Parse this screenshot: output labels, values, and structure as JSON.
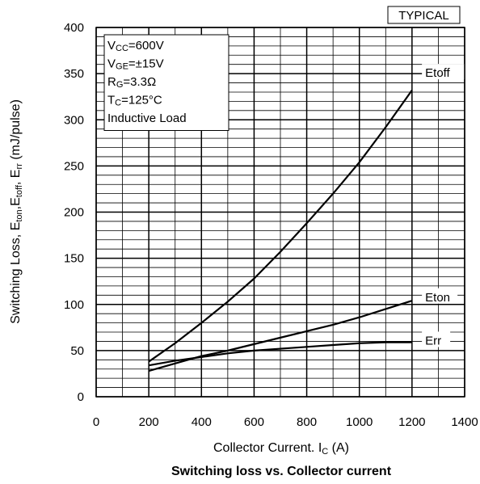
{
  "chart_data": {
    "type": "line",
    "badge": "TYPICAL",
    "caption": "Switching loss vs. Collector current",
    "xlabel": {
      "main": "Collector Current. I",
      "sub": "C",
      "unit": " (A)"
    },
    "ylabel": {
      "p1": "Switching Loss, E",
      "s1": "ton",
      "p2": ",E",
      "s2": "toff",
      "p3": ", E",
      "s3": "rr",
      "p4": " (mJ/pulse)"
    },
    "xlim": [
      0,
      1400
    ],
    "ylim": [
      0,
      400
    ],
    "xticks": [
      "0",
      "200",
      "400",
      "600",
      "800",
      "1000",
      "1200",
      "1400"
    ],
    "yticks": [
      "0",
      "50",
      "100",
      "150",
      "200",
      "250",
      "300",
      "350",
      "400"
    ],
    "grid": true,
    "conditions": [
      {
        "main": "V",
        "sub": "CC",
        "rest": "=600V"
      },
      {
        "main": "V",
        "sub": "GE",
        "rest": "=±15V"
      },
      {
        "main": "R",
        "sub": "G",
        "rest": "=3.3Ω"
      },
      {
        "main": "T",
        "sub": "C",
        "rest": "=125°C"
      },
      {
        "main": "Inductive Load",
        "sub": "",
        "rest": ""
      }
    ],
    "series": [
      {
        "name": "Etoff",
        "x": [
          200,
          300,
          400,
          500,
          600,
          700,
          800,
          900,
          1000,
          1100,
          1200
        ],
        "y": [
          38,
          58,
          80,
          103,
          128,
          157,
          188,
          220,
          254,
          292,
          332
        ]
      },
      {
        "name": "Eton",
        "x": [
          200,
          300,
          400,
          500,
          600,
          700,
          800,
          900,
          1000,
          1100,
          1200
        ],
        "y": [
          28,
          36,
          44,
          50,
          57,
          64,
          71,
          78,
          86,
          95,
          104
        ]
      },
      {
        "name": "Err",
        "x": [
          200,
          300,
          400,
          500,
          600,
          700,
          800,
          900,
          1000,
          1100,
          1200
        ],
        "y": [
          34,
          39,
          43,
          47,
          50,
          52,
          54,
          56,
          58,
          59,
          59
        ]
      }
    ]
  }
}
